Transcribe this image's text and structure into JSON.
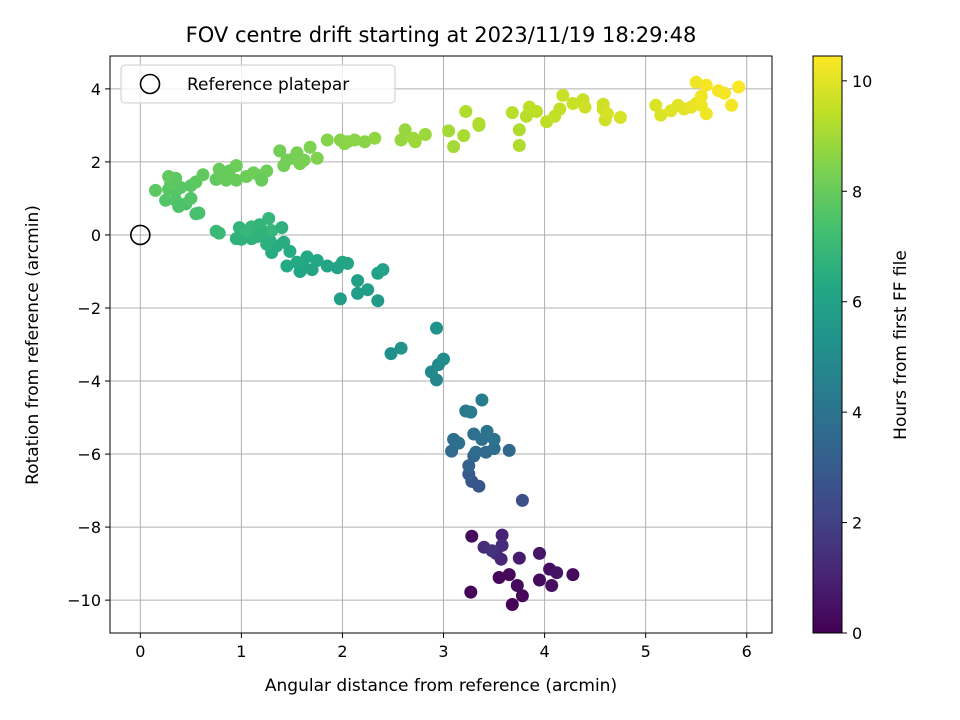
{
  "chart_data": {
    "type": "scatter",
    "title": "FOV centre drift starting at 2023/11/19 18:29:48",
    "xlabel": "Angular distance from reference (arcmin)",
    "ylabel": "Rotation from reference (arcmin)",
    "colorbar_label": "Hours from first FF file",
    "xlim": [
      -0.3,
      6.25
    ],
    "ylim": [
      -10.9,
      4.9
    ],
    "clim": [
      0,
      10.45
    ],
    "x_ticks": [
      0,
      1,
      2,
      3,
      4,
      5,
      6
    ],
    "y_ticks": [
      -10,
      -8,
      -6,
      -4,
      -2,
      0,
      2,
      4
    ],
    "c_ticks": [
      0,
      2,
      4,
      6,
      8,
      10
    ],
    "x_tick_labels": [
      "0",
      "1",
      "2",
      "3",
      "4",
      "5",
      "6"
    ],
    "y_tick_labels": [
      "−10",
      "−8",
      "−6",
      "−4",
      "−2",
      "0",
      "2",
      "4"
    ],
    "c_tick_labels": [
      "0",
      "2",
      "4",
      "6",
      "8",
      "10"
    ],
    "grid": true,
    "legend_position": "upper-left",
    "colormap": "viridis",
    "reference": {
      "label": "Reference platepar",
      "x": 0,
      "y": 0
    },
    "points": [
      [
        3.27,
        -9.78,
        0.1
      ],
      [
        3.28,
        -8.25,
        0.3
      ],
      [
        3.55,
        -9.38,
        0.2
      ],
      [
        3.65,
        -9.3,
        0.2
      ],
      [
        3.68,
        -10.12,
        0.1
      ],
      [
        3.73,
        -9.6,
        0.3
      ],
      [
        3.78,
        -9.88,
        0.2
      ],
      [
        3.95,
        -9.45,
        0.3
      ],
      [
        4.07,
        -9.6,
        0.4
      ],
      [
        3.95,
        -8.72,
        0.6
      ],
      [
        4.05,
        -9.15,
        0.4
      ],
      [
        4.12,
        -9.25,
        0.5
      ],
      [
        4.28,
        -9.3,
        0.3
      ],
      [
        3.75,
        -8.85,
        0.8
      ],
      [
        3.58,
        -8.22,
        1.0
      ],
      [
        3.57,
        -8.88,
        1.1
      ],
      [
        3.52,
        -8.72,
        1.2
      ],
      [
        3.4,
        -8.55,
        1.3
      ],
      [
        3.58,
        -8.5,
        1.3
      ],
      [
        3.48,
        -8.65,
        1.5
      ],
      [
        3.78,
        -7.27,
        2.5
      ],
      [
        3.28,
        -6.75,
        2.8
      ],
      [
        3.35,
        -6.88,
        2.8
      ],
      [
        3.25,
        -6.55,
        3.0
      ],
      [
        3.25,
        -6.32,
        3.2
      ],
      [
        3.3,
        -6.05,
        3.4
      ],
      [
        3.32,
        -5.95,
        3.6
      ],
      [
        3.42,
        -5.95,
        3.6
      ],
      [
        3.5,
        -5.85,
        3.7
      ],
      [
        3.65,
        -5.9,
        3.5
      ],
      [
        3.08,
        -5.92,
        3.6
      ],
      [
        3.1,
        -5.6,
        3.8
      ],
      [
        3.15,
        -5.7,
        3.8
      ],
      [
        3.3,
        -5.45,
        3.9
      ],
      [
        3.43,
        -5.38,
        4.0
      ],
      [
        3.5,
        -5.6,
        4.0
      ],
      [
        3.22,
        -4.82,
        4.2
      ],
      [
        3.27,
        -4.85,
        4.3
      ],
      [
        3.38,
        -4.52,
        4.4
      ],
      [
        3.38,
        -5.6,
        3.9
      ],
      [
        2.93,
        -3.97,
        4.8
      ],
      [
        2.88,
        -3.75,
        4.9
      ],
      [
        2.95,
        -3.55,
        4.9
      ],
      [
        3.0,
        -3.4,
        5.0
      ],
      [
        2.93,
        -2.55,
        5.3
      ],
      [
        2.48,
        -3.25,
        5.2
      ],
      [
        2.58,
        -3.1,
        5.3
      ],
      [
        2.35,
        -1.8,
        5.7
      ],
      [
        2.35,
        -1.05,
        5.9
      ],
      [
        2.4,
        -0.95,
        6.0
      ],
      [
        2.25,
        -1.5,
        5.8
      ],
      [
        2.15,
        -1.6,
        5.8
      ],
      [
        2.15,
        -1.25,
        5.9
      ],
      [
        1.98,
        -1.75,
        5.8
      ],
      [
        1.95,
        -0.9,
        6.0
      ],
      [
        2.0,
        -0.75,
        6.1
      ],
      [
        2.05,
        -0.78,
        6.1
      ],
      [
        1.85,
        -0.85,
        6.1
      ],
      [
        1.75,
        -0.7,
        6.2
      ],
      [
        1.7,
        -0.95,
        6.1
      ],
      [
        1.62,
        -0.9,
        6.2
      ],
      [
        1.58,
        -1.0,
        6.2
      ],
      [
        1.65,
        -0.6,
        6.3
      ],
      [
        1.55,
        -0.75,
        6.3
      ],
      [
        1.45,
        -0.85,
        6.3
      ],
      [
        1.48,
        -0.45,
        6.4
      ],
      [
        1.35,
        -0.3,
        6.5
      ],
      [
        1.3,
        -0.48,
        6.4
      ],
      [
        1.42,
        -0.2,
        6.5
      ],
      [
        1.28,
        -0.15,
        6.6
      ],
      [
        1.2,
        0.05,
        6.6
      ],
      [
        1.15,
        0.2,
        6.7
      ],
      [
        1.22,
        0.1,
        6.7
      ],
      [
        1.1,
        -0.1,
        6.6
      ],
      [
        1.15,
        -0.05,
        6.7
      ],
      [
        1.05,
        0.0,
        6.7
      ],
      [
        1.0,
        -0.12,
        6.7
      ],
      [
        0.98,
        0.2,
        6.8
      ],
      [
        0.95,
        -0.1,
        6.7
      ],
      [
        1.1,
        0.22,
        6.9
      ],
      [
        1.27,
        0.45,
        6.9
      ],
      [
        1.3,
        0.12,
        6.9
      ],
      [
        1.18,
        0.28,
        6.8
      ],
      [
        1.05,
        0.1,
        6.9
      ],
      [
        0.75,
        0.1,
        7.0
      ],
      [
        0.78,
        0.05,
        7.0
      ],
      [
        1.4,
        0.2,
        6.7
      ],
      [
        1.25,
        -0.25,
        6.6
      ],
      [
        0.15,
        1.22,
        7.8
      ],
      [
        0.28,
        1.25,
        7.7
      ],
      [
        0.25,
        0.95,
        7.6
      ],
      [
        0.35,
        0.95,
        7.6
      ],
      [
        0.38,
        0.78,
        7.5
      ],
      [
        0.45,
        0.85,
        7.5
      ],
      [
        0.5,
        1.0,
        7.6
      ],
      [
        0.35,
        1.2,
        7.6
      ],
      [
        0.4,
        1.3,
        7.7
      ],
      [
        0.5,
        1.35,
        7.7
      ],
      [
        0.3,
        1.4,
        7.8
      ],
      [
        0.35,
        1.55,
        7.8
      ],
      [
        0.28,
        1.6,
        7.9
      ],
      [
        0.55,
        0.58,
        7.4
      ],
      [
        0.58,
        0.6,
        7.4
      ],
      [
        0.55,
        1.45,
        7.8
      ],
      [
        0.62,
        1.65,
        7.9
      ],
      [
        0.75,
        1.52,
        7.9
      ],
      [
        0.8,
        1.65,
        8.0
      ],
      [
        0.85,
        1.5,
        8.0
      ],
      [
        0.78,
        1.8,
        8.0
      ],
      [
        0.88,
        1.75,
        8.0
      ],
      [
        0.95,
        1.9,
        8.1
      ],
      [
        0.95,
        1.5,
        8.0
      ],
      [
        1.05,
        1.6,
        8.1
      ],
      [
        1.12,
        1.7,
        8.1
      ],
      [
        1.18,
        1.62,
        8.1
      ],
      [
        1.25,
        1.75,
        8.1
      ],
      [
        1.2,
        1.5,
        8.0
      ],
      [
        1.38,
        2.3,
        8.2
      ],
      [
        1.45,
        2.05,
        8.2
      ],
      [
        1.52,
        2.1,
        8.2
      ],
      [
        1.42,
        1.9,
        8.2
      ],
      [
        1.58,
        1.95,
        8.3
      ],
      [
        1.62,
        2.05,
        8.3
      ],
      [
        1.55,
        2.25,
        8.3
      ],
      [
        1.68,
        2.4,
        8.4
      ],
      [
        1.75,
        2.1,
        8.4
      ],
      [
        1.85,
        2.6,
        8.5
      ],
      [
        1.98,
        2.6,
        8.5
      ],
      [
        2.02,
        2.5,
        8.6
      ],
      [
        2.05,
        2.55,
        8.6
      ],
      [
        2.12,
        2.6,
        8.6
      ],
      [
        2.22,
        2.55,
        8.6
      ],
      [
        2.32,
        2.65,
        8.7
      ],
      [
        2.58,
        2.6,
        8.8
      ],
      [
        2.62,
        2.88,
        8.8
      ],
      [
        2.72,
        2.55,
        8.9
      ],
      [
        2.82,
        2.75,
        8.9
      ],
      [
        2.7,
        2.65,
        8.9
      ],
      [
        3.05,
        2.85,
        9.0
      ],
      [
        3.1,
        2.42,
        9.0
      ],
      [
        3.2,
        2.72,
        9.1
      ],
      [
        3.22,
        3.38,
        9.2
      ],
      [
        3.35,
        3.0,
        9.1
      ],
      [
        3.35,
        3.05,
        9.2
      ],
      [
        3.68,
        3.35,
        9.3
      ],
      [
        3.75,
        2.88,
        9.2
      ],
      [
        3.75,
        2.45,
        9.2
      ],
      [
        3.82,
        3.25,
        9.3
      ],
      [
        3.85,
        3.5,
        9.4
      ],
      [
        3.92,
        3.38,
        9.4
      ],
      [
        4.02,
        3.1,
        9.4
      ],
      [
        4.1,
        3.25,
        9.5
      ],
      [
        4.15,
        3.45,
        9.5
      ],
      [
        4.18,
        3.82,
        9.6
      ],
      [
        4.28,
        3.6,
        9.6
      ],
      [
        4.38,
        3.7,
        9.6
      ],
      [
        4.4,
        3.5,
        9.7
      ],
      [
        4.58,
        3.45,
        9.7
      ],
      [
        4.58,
        3.58,
        9.7
      ],
      [
        4.6,
        3.15,
        9.7
      ],
      [
        4.62,
        3.32,
        9.8
      ],
      [
        4.75,
        3.22,
        9.8
      ],
      [
        5.1,
        3.55,
        9.9
      ],
      [
        5.15,
        3.28,
        9.9
      ],
      [
        5.25,
        3.4,
        10.0
      ],
      [
        5.32,
        3.55,
        10.0
      ],
      [
        5.38,
        3.45,
        10.0
      ],
      [
        5.45,
        3.5,
        10.1
      ],
      [
        5.5,
        3.6,
        10.1
      ],
      [
        5.5,
        4.18,
        10.2
      ],
      [
        5.55,
        3.8,
        10.2
      ],
      [
        5.55,
        3.55,
        10.2
      ],
      [
        5.6,
        3.32,
        10.2
      ],
      [
        5.6,
        4.1,
        10.3
      ],
      [
        5.72,
        3.95,
        10.3
      ],
      [
        5.78,
        3.88,
        10.3
      ],
      [
        5.85,
        3.55,
        10.3
      ],
      [
        5.92,
        4.05,
        10.4
      ]
    ]
  }
}
